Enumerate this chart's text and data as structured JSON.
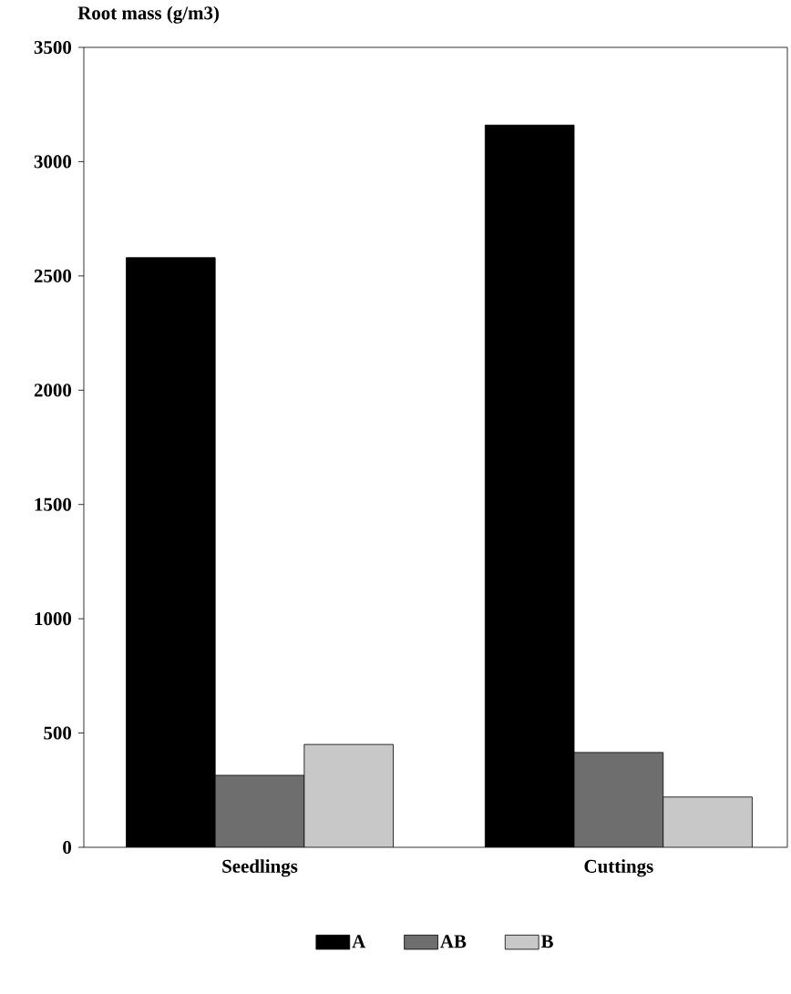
{
  "chart_data": {
    "type": "bar",
    "ylabel": "Root mass (g/m3)",
    "categories": [
      "Seedlings",
      "Cuttings"
    ],
    "series": [
      {
        "name": "A",
        "color": "#000000",
        "values": [
          2580,
          3160
        ]
      },
      {
        "name": "AB",
        "color": "#6e6e6e",
        "values": [
          315,
          415
        ]
      },
      {
        "name": "B",
        "color": "#c8c8c8",
        "values": [
          450,
          220
        ]
      }
    ],
    "ylim": [
      0,
      3500
    ],
    "yticks": [
      0,
      500,
      1000,
      1500,
      2000,
      2500,
      3000,
      3500
    ],
    "grid": false,
    "legend": "bottom"
  }
}
